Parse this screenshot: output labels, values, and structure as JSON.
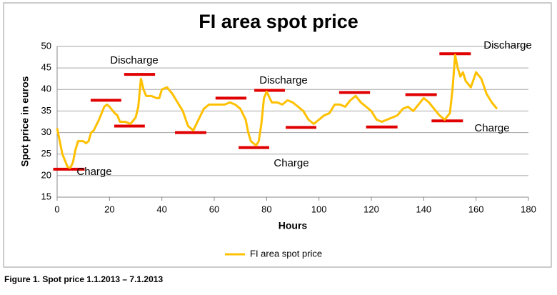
{
  "chart_data": {
    "type": "line",
    "title": "FI area spot price",
    "x_label": "Hours",
    "y_label": "Spot price in euros",
    "caption": "Figure 1. Spot price 1.1.2013 – 7.1.2013",
    "x": [
      0,
      2,
      4,
      5,
      6,
      7,
      8,
      10,
      11,
      12,
      13,
      14,
      16,
      18,
      19,
      20,
      22,
      23,
      24,
      26,
      28,
      30,
      31,
      32,
      33,
      34,
      36,
      38,
      39,
      40,
      42,
      44,
      46,
      48,
      50,
      52,
      54,
      56,
      58,
      60,
      62,
      64,
      66,
      68,
      70,
      72,
      73,
      74,
      76,
      77,
      78,
      79,
      80,
      82,
      84,
      86,
      88,
      90,
      92,
      94,
      95,
      96,
      98,
      100,
      102,
      104,
      106,
      108,
      110,
      112,
      114,
      116,
      118,
      120,
      122,
      124,
      126,
      128,
      130,
      132,
      134,
      136,
      138,
      140,
      142,
      144,
      146,
      148,
      150,
      151,
      152,
      153,
      154,
      155,
      156,
      158,
      160,
      162,
      164,
      166,
      168
    ],
    "series": [
      {
        "name": "FI area spot price",
        "color": "#ffc000",
        "values": [
          31,
          25,
          22,
          21.8,
          23,
          26,
          28,
          28,
          27.5,
          28,
          30,
          30.5,
          33,
          36,
          36.5,
          36,
          34.5,
          34,
          32.5,
          32.5,
          32,
          33.5,
          36,
          42.5,
          40,
          38.5,
          38.5,
          38,
          38,
          40,
          40.5,
          39,
          37,
          35,
          31.5,
          30.5,
          33,
          35.5,
          36.5,
          36.5,
          36.5,
          36.5,
          37,
          36.5,
          35.5,
          33,
          30,
          28,
          27,
          28,
          32,
          38,
          39.5,
          37,
          37,
          36.5,
          37.5,
          37,
          36,
          35,
          34,
          33,
          32,
          33,
          34,
          34.5,
          36.5,
          36.5,
          36,
          37.5,
          38.5,
          37,
          36,
          35,
          33,
          32.5,
          33,
          33.5,
          34,
          35.5,
          36,
          35,
          36.5,
          38,
          37,
          35.5,
          34,
          33,
          34.5,
          40,
          48,
          45,
          43,
          44,
          42,
          40.5,
          44,
          42.5,
          39,
          37,
          35.5
        ]
      }
    ],
    "levels": {
      "color": "#e00000",
      "items": [
        {
          "x": [
            -1.5,
            10.5
          ],
          "value": 21.5
        },
        {
          "x": [
            12.8,
            24.5
          ],
          "value": 37.5
        },
        {
          "x": [
            21.8,
            33.5
          ],
          "value": 31.5
        },
        {
          "x": [
            25.6,
            37.4
          ],
          "value": 43.5
        },
        {
          "x": [
            45,
            57
          ],
          "value": 30
        },
        {
          "x": [
            60.5,
            72.3
          ],
          "value": 38
        },
        {
          "x": [
            69.3,
            81
          ],
          "value": 26.5
        },
        {
          "x": [
            75.3,
            87
          ],
          "value": 39.8
        },
        {
          "x": [
            87.3,
            99
          ],
          "value": 31.2
        },
        {
          "x": [
            107.7,
            119.5
          ],
          "value": 39.3
        },
        {
          "x": [
            118,
            130
          ],
          "value": 31.3
        },
        {
          "x": [
            133,
            145
          ],
          "value": 38.8
        },
        {
          "x": [
            143,
            155
          ],
          "value": 32.7
        },
        {
          "x": [
            146,
            158
          ],
          "value": 48.3
        }
      ]
    },
    "annotations": [
      "Discharge",
      "Charge",
      "Discharge",
      "Charge",
      "Discharge",
      "Charge"
    ],
    "xlim": [
      0,
      180
    ],
    "xticks": [
      0,
      20,
      40,
      60,
      80,
      100,
      120,
      140,
      160,
      180
    ],
    "ylim": [
      15,
      50
    ],
    "yticks": [
      15,
      20,
      25,
      30,
      35,
      40,
      45,
      50
    ],
    "grid": true,
    "legend": "bottom"
  }
}
